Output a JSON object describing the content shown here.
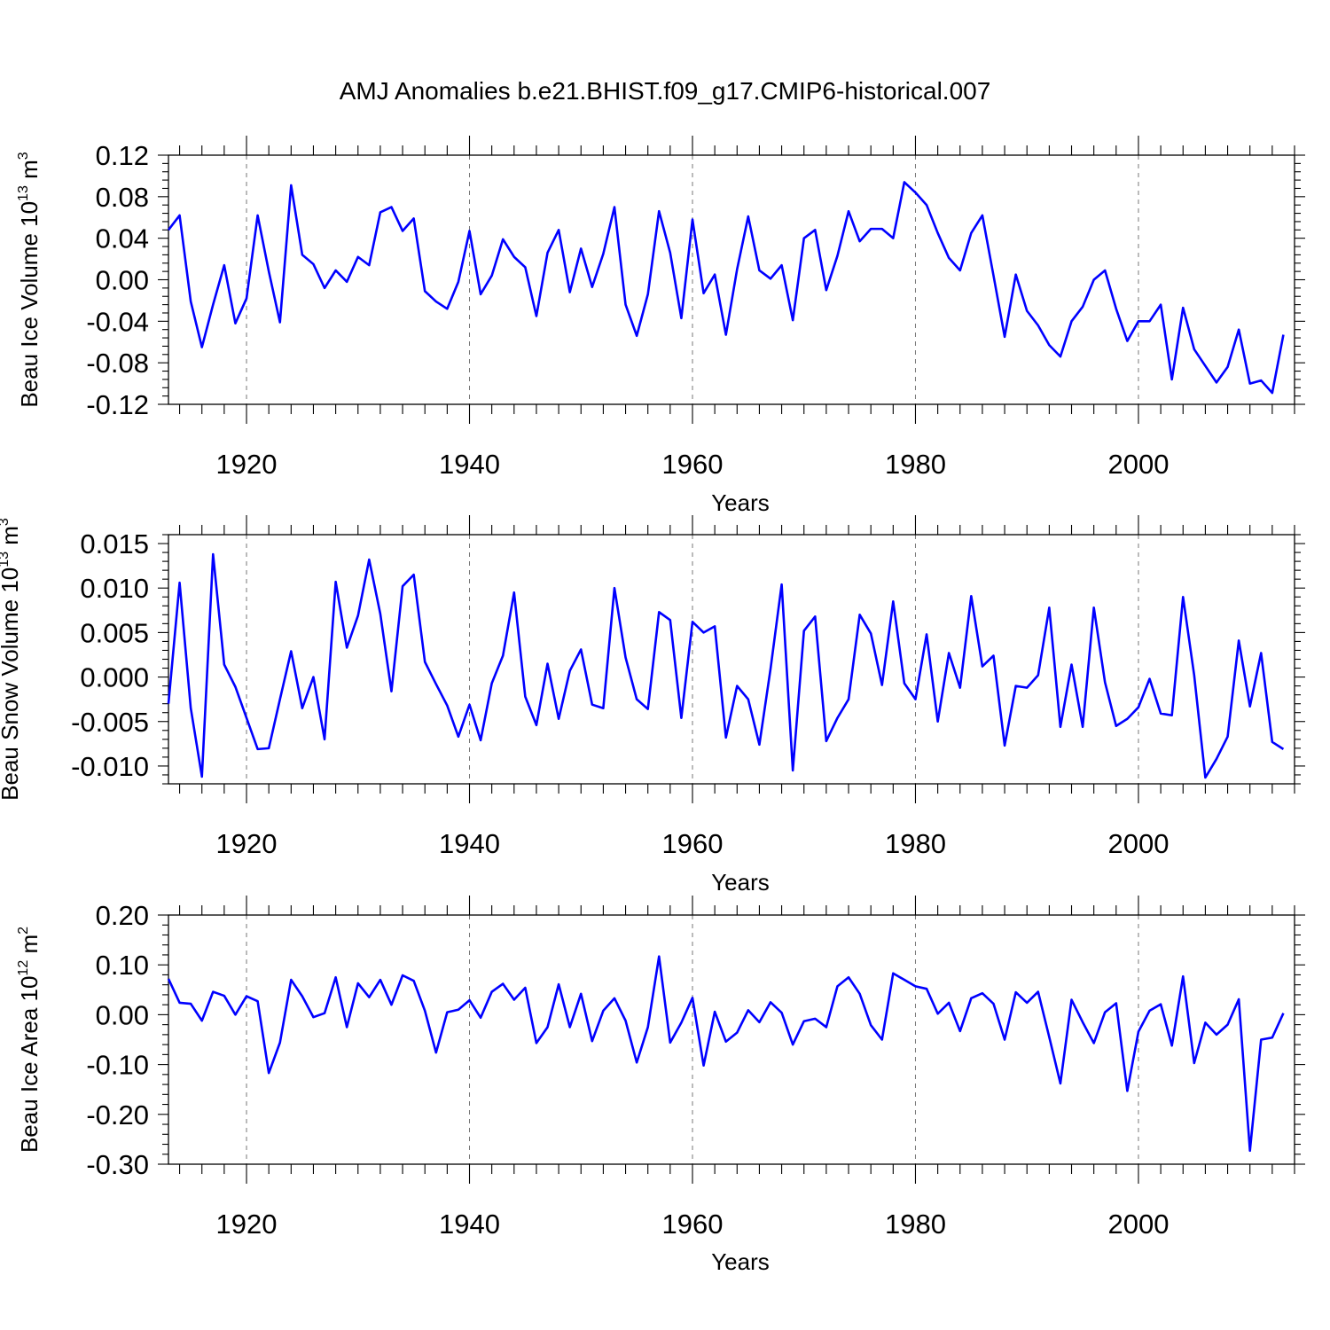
{
  "figure": {
    "title": "AMJ Anomalies b.e21.BHIST.f09_g17.CMIP6-historical.007",
    "line_color": "#0000ff"
  },
  "chart_data": [
    {
      "type": "line",
      "ylabel": "Beau Ice Volume",
      "yunit_base": "10",
      "yunit_exp": "13",
      "yunit_sym": "m",
      "yunit_sym_exp": "3",
      "xlabel": "Years",
      "xlim": [
        1913,
        2014
      ],
      "ylim": [
        -0.12,
        0.12
      ],
      "yticks": [
        -0.12,
        -0.08,
        -0.04,
        0.0,
        0.04,
        0.08,
        0.12
      ],
      "ytick_labels": [
        "-0.12",
        "-0.08",
        "-0.04",
        "0.00",
        "0.04",
        "0.08",
        "0.12"
      ],
      "xticks": [
        1920,
        1940,
        1960,
        1980,
        2000
      ],
      "xtick_labels": [
        "1920",
        "1940",
        "1960",
        "1980",
        "2000"
      ],
      "grid_x": true,
      "x_start": 1913,
      "values": [
        0.048,
        0.062,
        -0.021,
        -0.065,
        -0.024,
        0.014,
        -0.042,
        -0.018,
        0.062,
        0.008,
        -0.041,
        0.091,
        0.024,
        0.015,
        -0.008,
        0.009,
        -0.002,
        0.022,
        0.014,
        0.065,
        0.07,
        0.047,
        0.059,
        -0.011,
        -0.021,
        -0.028,
        -0.002,
        0.047,
        -0.014,
        0.004,
        0.039,
        0.022,
        0.012,
        -0.035,
        0.026,
        0.048,
        -0.012,
        0.03,
        -0.007,
        0.025,
        0.07,
        -0.024,
        -0.054,
        -0.014,
        0.066,
        0.026,
        -0.037,
        0.058,
        -0.013,
        0.005,
        -0.053,
        0.01,
        0.061,
        0.009,
        0.001,
        0.014,
        -0.039,
        0.04,
        0.048,
        -0.01,
        0.023,
        0.066,
        0.037,
        0.049,
        0.049,
        0.04,
        0.094,
        0.084,
        0.072,
        0.045,
        0.021,
        0.009,
        0.045,
        0.062,
        0.004,
        -0.055,
        0.005,
        -0.03,
        -0.044,
        -0.063,
        -0.074,
        -0.04,
        -0.026,
        0.0,
        0.009,
        -0.028,
        -0.059,
        -0.04,
        -0.04,
        -0.024,
        -0.096,
        -0.027,
        -0.067,
        -0.083,
        -0.099,
        -0.084,
        -0.048,
        -0.1,
        -0.097,
        -0.109,
        -0.053
      ]
    },
    {
      "type": "line",
      "ylabel": "Beau Snow Volume",
      "yunit_base": "10",
      "yunit_exp": "13",
      "yunit_sym": "m",
      "yunit_sym_exp": "3",
      "xlabel": "Years",
      "xlim": [
        1913,
        2014
      ],
      "ylim": [
        -0.012,
        0.016
      ],
      "yticks": [
        -0.01,
        -0.005,
        0.0,
        0.005,
        0.01,
        0.015
      ],
      "ytick_labels": [
        "-0.010",
        "-0.005",
        "0.000",
        "0.005",
        "0.010",
        "0.015"
      ],
      "xticks": [
        1920,
        1940,
        1960,
        1980,
        2000
      ],
      "xtick_labels": [
        "1920",
        "1940",
        "1960",
        "1980",
        "2000"
      ],
      "grid_x": true,
      "x_start": 1913,
      "values": [
        -0.003,
        0.0106,
        -0.0035,
        -0.0112,
        0.0138,
        0.0014,
        -0.0011,
        -0.0046,
        -0.0081,
        -0.008,
        -0.0025,
        0.0029,
        -0.0035,
        0.0,
        -0.007,
        0.0107,
        0.0033,
        0.0069,
        0.0132,
        0.0071,
        -0.0016,
        0.0102,
        0.0115,
        0.0017,
        -0.0008,
        -0.0032,
        -0.0067,
        -0.0031,
        -0.0071,
        -0.0007,
        0.0024,
        0.0095,
        -0.0022,
        -0.0054,
        0.0015,
        -0.0047,
        0.0007,
        0.0031,
        -0.0031,
        -0.0035,
        0.01,
        0.0022,
        -0.0025,
        -0.0036,
        0.0073,
        0.0064,
        -0.0046,
        0.0062,
        0.005,
        0.0057,
        -0.0068,
        -0.001,
        -0.0025,
        -0.0076,
        0.0009,
        0.0104,
        -0.0105,
        0.0052,
        0.0068,
        -0.0072,
        -0.0046,
        -0.0025,
        0.007,
        0.0049,
        -0.0009,
        0.0085,
        -0.0007,
        -0.0025,
        0.0048,
        -0.005,
        0.0027,
        -0.0012,
        0.0091,
        0.0012,
        0.0024,
        -0.0077,
        -0.001,
        -0.0012,
        0.0002,
        0.0078,
        -0.0056,
        0.0014,
        -0.0056,
        0.0078,
        -0.0006,
        -0.0055,
        -0.0047,
        -0.0034,
        -0.0002,
        -0.0041,
        -0.0043,
        0.009,
        0.0002,
        -0.0113,
        -0.0092,
        -0.0067,
        0.0041,
        -0.0033,
        0.0027,
        -0.0073,
        -0.0081
      ]
    },
    {
      "type": "line",
      "ylabel": "Beau Ice Area",
      "yunit_base": "10",
      "yunit_exp": "12",
      "yunit_sym": "m",
      "yunit_sym_exp": "2",
      "xlabel": "Years",
      "xlim": [
        1913,
        2014
      ],
      "ylim": [
        -0.3,
        0.2
      ],
      "yticks": [
        -0.3,
        -0.2,
        -0.1,
        0.0,
        0.1,
        0.2
      ],
      "ytick_labels": [
        "-0.30",
        "-0.20",
        "-0.10",
        "0.00",
        "0.10",
        "0.20"
      ],
      "xticks": [
        1920,
        1940,
        1960,
        1980,
        2000
      ],
      "xtick_labels": [
        "1920",
        "1940",
        "1960",
        "1980",
        "2000"
      ],
      "grid_x": true,
      "x_start": 1913,
      "values": [
        0.072,
        0.024,
        0.022,
        -0.012,
        0.046,
        0.038,
        0.0,
        0.037,
        0.027,
        -0.117,
        -0.056,
        0.07,
        0.037,
        -0.005,
        0.003,
        0.075,
        -0.025,
        0.063,
        0.035,
        0.07,
        0.02,
        0.079,
        0.068,
        0.008,
        -0.076,
        0.005,
        0.01,
        0.029,
        -0.006,
        0.046,
        0.062,
        0.03,
        0.054,
        -0.057,
        -0.025,
        0.061,
        -0.025,
        0.042,
        -0.053,
        0.008,
        0.033,
        -0.012,
        -0.096,
        -0.025,
        0.117,
        -0.056,
        -0.016,
        0.034,
        -0.102,
        0.006,
        -0.054,
        -0.036,
        0.009,
        -0.015,
        0.025,
        0.004,
        -0.06,
        -0.013,
        -0.008,
        -0.025,
        0.057,
        0.075,
        0.042,
        -0.021,
        -0.05,
        0.083,
        0.07,
        0.057,
        0.052,
        0.002,
        0.024,
        -0.033,
        0.033,
        0.043,
        0.022,
        -0.05,
        0.045,
        0.024,
        0.046,
        -0.045,
        -0.138,
        0.03,
        -0.015,
        -0.057,
        0.005,
        0.023,
        -0.153,
        -0.034,
        0.008,
        0.021,
        -0.062,
        0.077,
        -0.097,
        -0.016,
        -0.04,
        -0.02,
        0.031,
        -0.273,
        -0.05,
        -0.046,
        0.003
      ]
    }
  ]
}
